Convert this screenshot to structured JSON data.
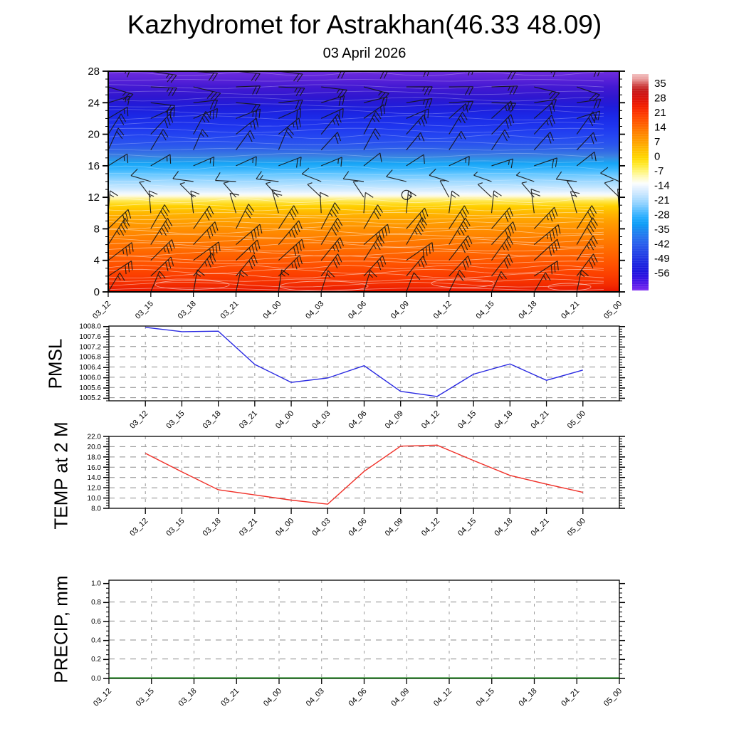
{
  "title": "Kazhydromet for Astrakhan(46.33 48.09)",
  "subtitle": "03 April 2026",
  "time_labels": [
    "03_12",
    "03_15",
    "03_18",
    "03_21",
    "04_00",
    "04_03",
    "04_06",
    "04_09",
    "04_12",
    "04_15",
    "04_18",
    "04_21",
    "05_00"
  ],
  "chart_data": [
    {
      "type": "heatmap",
      "name": "wind-temperature-height-section",
      "x_categories": [
        "03_12",
        "03_15",
        "03_18",
        "03_21",
        "04_00",
        "04_03",
        "04_06",
        "04_09",
        "04_12",
        "04_15",
        "04_18",
        "04_21",
        "05_00"
      ],
      "ylim": [
        0,
        28
      ],
      "yticks": [
        "28",
        "24",
        "20",
        "16",
        "12",
        "8",
        "4",
        "0"
      ],
      "grid": false,
      "gradient_stops": [
        {
          "h": 0,
          "color": "#e61300"
        },
        {
          "h": 0.8,
          "color": "#f22a00"
        },
        {
          "h": 2,
          "color": "#fb3d00"
        },
        {
          "h": 3.5,
          "color": "#ff5200"
        },
        {
          "h": 5,
          "color": "#ff6700"
        },
        {
          "h": 6.5,
          "color": "#ff7b00"
        },
        {
          "h": 8,
          "color": "#ff9000"
        },
        {
          "h": 9.3,
          "color": "#ffa600"
        },
        {
          "h": 10.2,
          "color": "#ffbc00"
        },
        {
          "h": 10.9,
          "color": "#ffd100"
        },
        {
          "h": 11.5,
          "color": "#ffe64a"
        },
        {
          "h": 11.9,
          "color": "#fdf2a0"
        },
        {
          "h": 12.15,
          "color": "#fffbe0"
        },
        {
          "h": 12.45,
          "color": "#f2f9ff"
        },
        {
          "h": 12.8,
          "color": "#ddeffe"
        },
        {
          "h": 13.4,
          "color": "#bde4ff"
        },
        {
          "h": 14.2,
          "color": "#94d5ff"
        },
        {
          "h": 15,
          "color": "#60c5ff"
        },
        {
          "h": 15.7,
          "color": "#30b2fd"
        },
        {
          "h": 16.3,
          "color": "#17a5f6"
        },
        {
          "h": 16.8,
          "color": "#2d94e8"
        },
        {
          "h": 17.3,
          "color": "#3b7ee2"
        },
        {
          "h": 17.9,
          "color": "#3168e6"
        },
        {
          "h": 18.7,
          "color": "#2a55ee"
        },
        {
          "h": 19.8,
          "color": "#2445f1"
        },
        {
          "h": 21,
          "color": "#1e35ee"
        },
        {
          "h": 22.3,
          "color": "#1b28e6"
        },
        {
          "h": 23.5,
          "color": "#1f1cda"
        },
        {
          "h": 24.7,
          "color": "#2f17d0"
        },
        {
          "h": 26,
          "color": "#4319d2"
        },
        {
          "h": 27,
          "color": "#5a22d9"
        },
        {
          "h": 28,
          "color": "#6f2edf"
        }
      ],
      "contour_color": "#ffffff",
      "wind_profile": [
        {
          "h": 28,
          "angle": 3,
          "barbs": 2
        },
        {
          "h": 26,
          "angle": -6,
          "barbs": 2.5
        },
        {
          "h": 24,
          "angle": 6,
          "barbs": 2
        },
        {
          "h": 22,
          "angle": 30,
          "barbs": 2
        },
        {
          "h": 20,
          "angle": 50,
          "barbs": 2.5
        },
        {
          "h": 18,
          "angle": 57,
          "barbs": 2
        },
        {
          "h": 16,
          "angle": 28,
          "barbs": 1.5
        },
        {
          "h": 14,
          "angle": 165,
          "barbs": 1
        },
        {
          "h": 12,
          "angle": 130,
          "barbs": 0.5
        },
        {
          "h": 10,
          "angle": 95,
          "barbs": 1.5
        },
        {
          "h": 8,
          "angle": 54,
          "barbs": 3
        },
        {
          "h": 6,
          "angle": 48,
          "barbs": 4
        },
        {
          "h": 4,
          "angle": 46,
          "barbs": 3.5
        },
        {
          "h": 2,
          "angle": 44,
          "barbs": 3
        },
        {
          "h": 0,
          "angle": 72,
          "barbs": 1.5
        }
      ],
      "calm_marker": {
        "x_index": 7,
        "height": 12.3
      },
      "colorbar": {
        "labels": [
          "35",
          "28",
          "21",
          "14",
          "7",
          "0",
          "-7",
          "-14",
          "-21",
          "-28",
          "-35",
          "-42",
          "-49",
          "-56"
        ],
        "range": [
          36,
          -62
        ],
        "stops": [
          {
            "v": 36,
            "color": "#f2c0c0"
          },
          {
            "v": 33.5,
            "color": "#e89898"
          },
          {
            "v": 31,
            "color": "#d04848"
          },
          {
            "v": 29,
            "color": "#c52020"
          },
          {
            "v": 27,
            "color": "#cf1414"
          },
          {
            "v": 24,
            "color": "#e21408"
          },
          {
            "v": 21.5,
            "color": "#f21f00"
          },
          {
            "v": 19,
            "color": "#fb3000"
          },
          {
            "v": 16,
            "color": "#ff4a00"
          },
          {
            "v": 13,
            "color": "#ff6000"
          },
          {
            "v": 10,
            "color": "#ff7e00"
          },
          {
            "v": 7,
            "color": "#ff9400"
          },
          {
            "v": 4,
            "color": "#ffab00"
          },
          {
            "v": 1,
            "color": "#ffc300"
          },
          {
            "v": -2,
            "color": "#ffd800"
          },
          {
            "v": -5,
            "color": "#ffe92e"
          },
          {
            "v": -8,
            "color": "#fff577"
          },
          {
            "v": -11,
            "color": "#fffbc4"
          },
          {
            "v": -13.5,
            "color": "#fdfefc"
          },
          {
            "v": -15,
            "color": "#ecf5ff"
          },
          {
            "v": -17,
            "color": "#d7ecff"
          },
          {
            "v": -20,
            "color": "#b4dfff"
          },
          {
            "v": -23,
            "color": "#8bd0ff"
          },
          {
            "v": -26,
            "color": "#55bdff"
          },
          {
            "v": -29,
            "color": "#25acfe"
          },
          {
            "v": -32,
            "color": "#0c9cf6"
          },
          {
            "v": -35,
            "color": "#1b86f0"
          },
          {
            "v": -38,
            "color": "#2672ee"
          },
          {
            "v": -41,
            "color": "#285eec"
          },
          {
            "v": -44,
            "color": "#254ae8"
          },
          {
            "v": -47,
            "color": "#2138e4"
          },
          {
            "v": -50,
            "color": "#1d26e0"
          },
          {
            "v": -53,
            "color": "#1c17dd"
          },
          {
            "v": -56,
            "color": "#3012e2"
          },
          {
            "v": -59,
            "color": "#5318e8"
          },
          {
            "v": -62,
            "color": "#7e2df2"
          }
        ]
      }
    },
    {
      "type": "line",
      "name": "pmsl",
      "ylabel": "PMSL",
      "color": "#2a2ae2",
      "x_categories": [
        "03_12",
        "03_15",
        "03_18",
        "03_21",
        "04_00",
        "04_03",
        "04_06",
        "04_09",
        "04_12",
        "04_15",
        "04_18",
        "04_21",
        "05_00"
      ],
      "values": [
        1007.95,
        1007.78,
        1007.8,
        1006.5,
        1005.8,
        1005.97,
        1006.45,
        1005.45,
        1005.25,
        1006.12,
        1006.52,
        1005.88,
        1006.28
      ],
      "yticks": [
        "1008.0",
        "1007.6",
        "1007.2",
        "1006.8",
        "1006.4",
        "1006.0",
        "1005.6",
        "1005.2"
      ],
      "ylim": [
        1005.08,
        1008.0
      ],
      "grid": "dashed",
      "legend": "none"
    },
    {
      "type": "line",
      "name": "temp-2m",
      "ylabel": "TEMP at 2 M",
      "color": "#f03028",
      "x_categories": [
        "03_12",
        "03_15",
        "03_18",
        "03_21",
        "04_00",
        "04_03",
        "04_06",
        "04_09",
        "04_12",
        "04_15",
        "04_18",
        "04_21",
        "05_00"
      ],
      "values": [
        18.7,
        15.1,
        11.6,
        10.6,
        9.6,
        8.8,
        15.2,
        20.1,
        20.3,
        17.3,
        14.4,
        12.7,
        11.1
      ],
      "yticks": [
        "22.0",
        "20.0",
        "18.0",
        "16.0",
        "14.0",
        "12.0",
        "10.0",
        "8.0"
      ],
      "ylim": [
        8.0,
        22.0
      ],
      "grid": "dashed",
      "legend": "none"
    },
    {
      "type": "line",
      "name": "precip",
      "ylabel": "PRECIP, mm",
      "color": "#077307",
      "x_categories": [
        "03_12",
        "03_15",
        "03_18",
        "03_21",
        "04_00",
        "04_03",
        "04_06",
        "04_09",
        "04_12",
        "04_15",
        "04_18",
        "04_21",
        "05_00"
      ],
      "values": [
        0,
        0,
        0,
        0,
        0,
        0,
        0,
        0,
        0,
        0,
        0,
        0,
        0
      ],
      "yticks": [
        "1.0",
        "0.8",
        "0.6",
        "0.4",
        "0.2",
        "0.0"
      ],
      "ylim": [
        -0.005,
        1.03
      ],
      "grid": "dashed",
      "legend": "none"
    }
  ]
}
